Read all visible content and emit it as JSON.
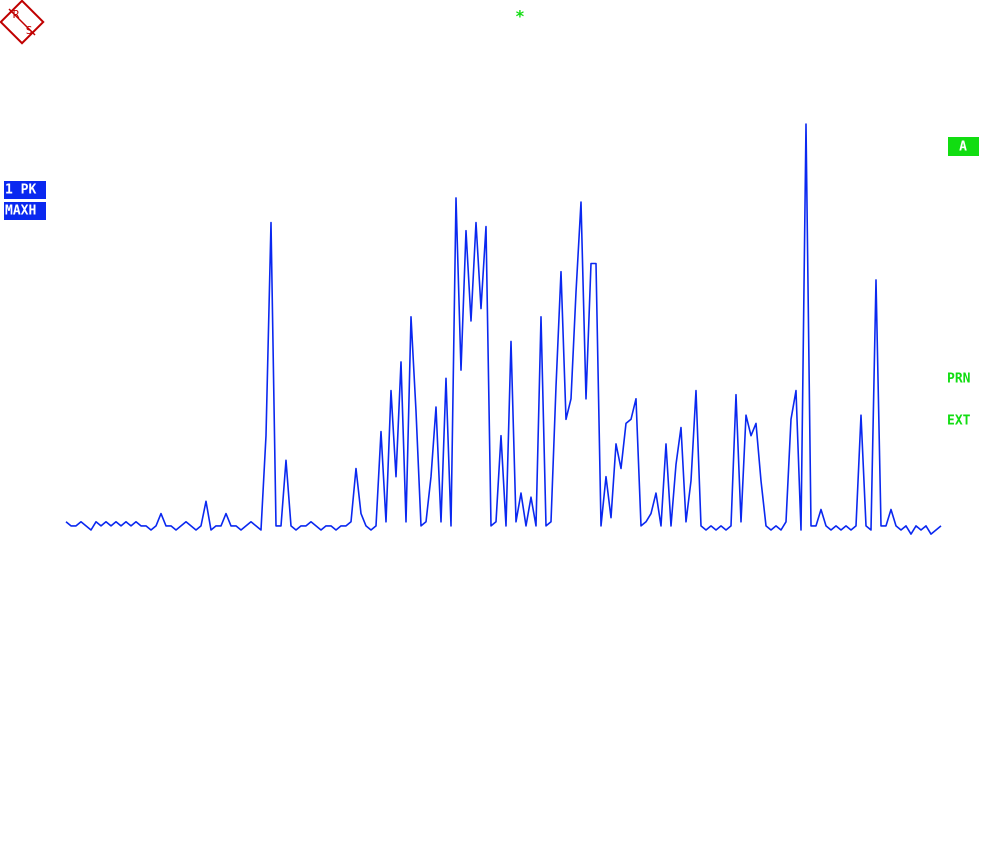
{
  "logo": {
    "top": "R",
    "bottom": "S"
  },
  "marker_symbol": "*",
  "trace_labels": {
    "detector": "1 PK",
    "mode": "MAXH"
  },
  "side_labels": {
    "trace": "A",
    "printer": "PRN",
    "ext": "EXT"
  },
  "chart_data": {
    "type": "line",
    "color": "#0a28f0",
    "ylim": [
      0,
      100
    ],
    "values": [
      2,
      1,
      1,
      2,
      1,
      0,
      2,
      1,
      2,
      1,
      2,
      1,
      2,
      1,
      2,
      1,
      1,
      0,
      1,
      4,
      1,
      1,
      0,
      1,
      2,
      1,
      0,
      1,
      7,
      0,
      1,
      1,
      4,
      1,
      1,
      0,
      1,
      2,
      1,
      0,
      23,
      75,
      1,
      1,
      17,
      1,
      0,
      1,
      1,
      2,
      1,
      0,
      1,
      1,
      0,
      1,
      1,
      2,
      15,
      4,
      1,
      0,
      1,
      24,
      2,
      34,
      13,
      41,
      2,
      52,
      29,
      1,
      2,
      13,
      30,
      2,
      37,
      1,
      81,
      39,
      73,
      51,
      75,
      54,
      74,
      1,
      2,
      23,
      1,
      46,
      2,
      9,
      1,
      8,
      1,
      52,
      1,
      2,
      35,
      63,
      27,
      32,
      58,
      80,
      32,
      65,
      65,
      1,
      13,
      3,
      21,
      15,
      26,
      27,
      32,
      1,
      2,
      4,
      9,
      1,
      21,
      1,
      16,
      25,
      2,
      12,
      34,
      1,
      0,
      1,
      0,
      1,
      0,
      1,
      33,
      2,
      28,
      23,
      26,
      12,
      1,
      0,
      1,
      0,
      2,
      27,
      34,
      0,
      99,
      1,
      1,
      5,
      1,
      0,
      1,
      0,
      1,
      0,
      1,
      28,
      1,
      0,
      61,
      1,
      1,
      5,
      1,
      0,
      1,
      -1,
      1,
      0,
      1,
      -1,
      0,
      1
    ]
  }
}
